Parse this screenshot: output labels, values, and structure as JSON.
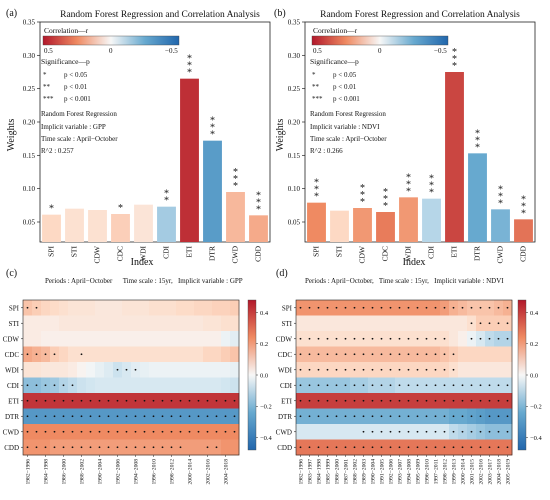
{
  "chart_data": [
    {
      "panel_label": "(a)",
      "type": "bar",
      "title": "Random Forest Regression and Correlation Analysis",
      "xlabel": "Index",
      "ylabel": "Weights",
      "ylim": [
        0.02,
        0.35
      ],
      "yticks": [
        "0.05",
        "0.10",
        "0.15",
        "0.20",
        "0.25",
        "0.30",
        "0.35"
      ],
      "categories": [
        "SPI",
        "STI",
        "CDW",
        "CDC",
        "WDI",
        "CDI",
        "ETI",
        "DTR",
        "CWD",
        "CDD"
      ],
      "values": [
        0.061,
        0.07,
        0.068,
        0.062,
        0.076,
        0.073,
        0.265,
        0.172,
        0.095,
        0.06
      ],
      "correlation_r": [
        0.08,
        0.06,
        0.06,
        0.1,
        0.05,
        -0.15,
        0.45,
        -0.3,
        0.15,
        0.18
      ],
      "significance": [
        "*",
        "",
        "",
        "*",
        "",
        "**",
        "***",
        "***",
        "***",
        "***"
      ],
      "colorbar": {
        "title": "Correlation—r",
        "ticks": [
          "0.5",
          "0",
          "−0.5"
        ]
      },
      "legend": {
        "title": "Significance—p",
        "rows": [
          [
            "*",
            "p < 0.05"
          ],
          [
            "**",
            "p < 0.01"
          ],
          [
            "***",
            "p < 0.001"
          ]
        ]
      },
      "note": [
        "Random Forest Regression",
        "Implicit variable : GPP",
        "Time scale : April−October",
        "R^2 : 0.257"
      ]
    },
    {
      "panel_label": "(b)",
      "type": "bar",
      "title": "Random Forest Regression and Correlation Analysis",
      "xlabel": "Index",
      "ylabel": "Weights",
      "ylim": [
        0.02,
        0.35
      ],
      "yticks": [
        "0.05",
        "0.10",
        "0.15",
        "0.20",
        "0.25",
        "0.30",
        "0.35"
      ],
      "categories": [
        "SPI",
        "STI",
        "CDW",
        "CDC",
        "WDI",
        "CDI",
        "ETI",
        "DTR",
        "CWD",
        "CDD"
      ],
      "values": [
        0.079,
        0.067,
        0.071,
        0.065,
        0.087,
        0.085,
        0.275,
        0.153,
        0.069,
        0.054
      ],
      "correlation_r": [
        0.25,
        0.08,
        0.22,
        0.28,
        0.22,
        -0.12,
        0.4,
        -0.25,
        -0.22,
        0.3
      ],
      "significance": [
        "***",
        "",
        "***",
        "***",
        "***",
        "***",
        "***",
        "***",
        "***",
        "***"
      ],
      "colorbar": {
        "title": "Correlation—r",
        "ticks": [
          "0.5",
          "0",
          "−0.5"
        ]
      },
      "legend": {
        "title": "Significance—p",
        "rows": [
          [
            "*",
            "p < 0.05"
          ],
          [
            "**",
            "p < 0.01"
          ],
          [
            "***",
            "p < 0.001"
          ]
        ]
      },
      "note": [
        "Random Forest Regression",
        "Implicit variable : NDVI",
        "Time scale : April−October",
        "R^2 : 0.266"
      ]
    },
    {
      "panel_label": "(c)",
      "type": "heatmap",
      "header": "Periods : April−October      Time scale : 15yr,   Implicit variable : GPP",
      "rows": [
        "SPI",
        "STI",
        "CDW",
        "CDC",
        "WDI",
        "CDI",
        "ETI",
        "DTR",
        "CWD",
        "CDD"
      ],
      "columns": [
        "1982−1996",
        "1983−1997",
        "1984−1998",
        "1985−1999",
        "1986−2000",
        "1987−2001",
        "1988−2002",
        "1989−2003",
        "1990−2004",
        "1991−2005",
        "1992−2006",
        "1993−2007",
        "1994−2008",
        "1995−2009",
        "1996−2010",
        "1997−2011",
        "1998−2012",
        "1999−2013",
        "2000−2014",
        "2001−2015",
        "2002−2016",
        "2003−2017",
        "2004−2018",
        "2005−2019"
      ],
      "xtick_labels": [
        "1982−1996",
        "1984−1998",
        "1986−2000",
        "1988−2002",
        "1990−2004",
        "1992−2006",
        "1994−2008",
        "1996−2010",
        "1998−2012",
        "2000−2014",
        "2002−2016",
        "2004−2018"
      ],
      "row_values": [
        [
          0.12,
          0.1,
          0.08,
          0.07,
          0.06,
          0.05,
          0.05,
          0.05,
          0.04,
          0.04,
          0.04,
          0.05,
          0.05,
          0.05,
          0.06,
          0.06,
          0.06,
          0.07,
          0.07,
          0.08,
          0.08,
          0.09,
          0.09,
          0.1
        ],
        [
          0.03,
          0.03,
          0.03,
          0.03,
          0.04,
          0.04,
          0.04,
          0.04,
          0.04,
          0.04,
          0.04,
          0.04,
          0.04,
          0.04,
          0.04,
          0.04,
          0.04,
          0.04,
          0.04,
          0.04,
          0.05,
          0.05,
          0.06,
          0.06
        ],
        [
          0.03,
          0.03,
          0.02,
          0.02,
          0.02,
          0.02,
          0.02,
          0.02,
          0.02,
          0.02,
          0.02,
          0.02,
          0.02,
          0.02,
          0.02,
          0.02,
          0.02,
          0.02,
          0.02,
          0.02,
          0.02,
          0.02,
          -0.02,
          -0.04
        ],
        [
          0.18,
          0.16,
          0.14,
          0.1,
          0.08,
          0.06,
          0.06,
          0.06,
          0.06,
          0.06,
          0.06,
          0.06,
          0.06,
          0.06,
          0.06,
          0.06,
          0.06,
          0.06,
          0.06,
          0.06,
          0.08,
          0.08,
          0.1,
          0.12
        ],
        [
          0.05,
          0.05,
          0.04,
          0.04,
          0.04,
          0.03,
          0.01,
          -0.01,
          -0.03,
          -0.05,
          -0.08,
          -0.06,
          -0.04,
          -0.03,
          -0.02,
          -0.02,
          -0.02,
          -0.02,
          -0.02,
          -0.02,
          -0.02,
          -0.02,
          -0.02,
          -0.03
        ],
        [
          -0.18,
          -0.18,
          -0.16,
          -0.15,
          -0.12,
          -0.1,
          -0.08,
          -0.07,
          -0.06,
          -0.06,
          -0.06,
          -0.06,
          -0.06,
          -0.06,
          -0.06,
          -0.06,
          -0.06,
          -0.06,
          -0.06,
          -0.06,
          -0.06,
          -0.06,
          -0.07,
          -0.08
        ],
        [
          0.42,
          0.42,
          0.42,
          0.42,
          0.42,
          0.42,
          0.42,
          0.42,
          0.42,
          0.42,
          0.42,
          0.42,
          0.42,
          0.42,
          0.42,
          0.42,
          0.42,
          0.42,
          0.42,
          0.42,
          0.42,
          0.42,
          0.42,
          0.42
        ],
        [
          -0.3,
          -0.3,
          -0.3,
          -0.3,
          -0.3,
          -0.3,
          -0.3,
          -0.3,
          -0.3,
          -0.3,
          -0.3,
          -0.3,
          -0.3,
          -0.3,
          -0.3,
          -0.3,
          -0.3,
          -0.3,
          -0.3,
          -0.3,
          -0.3,
          -0.3,
          -0.3,
          -0.3
        ],
        [
          0.24,
          0.24,
          0.24,
          0.24,
          0.24,
          0.24,
          0.24,
          0.24,
          0.24,
          0.24,
          0.24,
          0.24,
          0.24,
          0.24,
          0.24,
          0.24,
          0.24,
          0.24,
          0.24,
          0.24,
          0.24,
          0.24,
          0.24,
          0.24
        ],
        [
          0.22,
          0.22,
          0.22,
          0.2,
          0.2,
          0.2,
          0.2,
          0.2,
          0.2,
          0.2,
          0.2,
          0.2,
          0.2,
          0.2,
          0.2,
          0.2,
          0.2,
          0.2,
          0.2,
          0.2,
          0.2,
          0.2,
          0.22,
          0.22
        ]
      ],
      "significant_cells": [
        [
          0,
          1
        ],
        [],
        [],
        [
          0,
          1,
          2,
          3,
          6
        ],
        [
          10,
          11,
          12
        ],
        [
          0,
          1,
          2,
          3,
          4,
          5
        ],
        [
          0,
          1,
          2,
          3,
          4,
          5,
          6,
          7,
          8,
          9,
          10,
          11,
          12,
          13,
          14,
          15,
          16,
          17,
          18,
          19,
          20,
          21,
          22,
          23
        ],
        [
          0,
          1,
          2,
          3,
          4,
          5,
          6,
          7,
          8,
          9,
          10,
          11,
          12,
          13,
          14,
          15,
          16,
          17,
          18,
          19,
          20,
          21,
          22,
          23
        ],
        [
          0,
          1,
          2,
          3,
          4,
          5,
          6,
          7,
          8,
          9,
          10,
          11,
          12,
          13,
          14,
          15,
          16,
          17,
          18,
          19,
          20,
          21,
          22,
          23
        ],
        [
          0,
          1,
          2,
          3,
          4,
          5,
          6,
          7,
          8,
          9,
          10,
          11,
          12,
          13,
          14,
          15,
          16,
          17,
          20,
          21
        ]
      ],
      "colorbar_ticks": [
        "0.4",
        "0.2",
        "0.0",
        "−0.2",
        "−0.4"
      ],
      "clim": [
        -0.48,
        0.48
      ]
    },
    {
      "panel_label": "(d)",
      "type": "heatmap",
      "header": "Periods : April−October,   Time scale : 15yr,   Implicit variable : NDVI",
      "rows": [
        "SPI",
        "STI",
        "CDW",
        "CDC",
        "WDI",
        "CDI",
        "ETI",
        "DTR",
        "CWD",
        "CDD"
      ],
      "columns": [
        "1982−1996",
        "1983−1997",
        "1984−1998",
        "1985−1999",
        "1986−2000",
        "1987−2001",
        "1988−2002",
        "1989−2003",
        "1990−2004",
        "1991−2005",
        "1992−2006",
        "1993−2007",
        "1994−2008",
        "1995−2009",
        "1996−2010",
        "1997−2011",
        "1998−2012",
        "1999−2013",
        "2000−2014",
        "2001−2015",
        "2002−2016",
        "2003−2017",
        "2004−2018",
        "2005−2019"
      ],
      "xtick_labels": [
        "1982−1996",
        "1983−1997",
        "1984−1998",
        "1985−1999",
        "1986−2000",
        "1987−2001",
        "1988−2002",
        "1989−2003",
        "1990−2004",
        "1991−2005",
        "1992−2006",
        "1993−2007",
        "1994−2008",
        "1995−2009",
        "1996−2010",
        "1997−2011",
        "1998−2012",
        "1999−2013",
        "2000−2014",
        "2001−2015",
        "2002−2016",
        "2003−2017",
        "2004−2018",
        "2005−2019"
      ],
      "row_values": [
        [
          0.22,
          0.22,
          0.22,
          0.22,
          0.22,
          0.22,
          0.22,
          0.22,
          0.22,
          0.22,
          0.22,
          0.22,
          0.22,
          0.22,
          0.22,
          0.22,
          0.2,
          0.16,
          0.14,
          0.12,
          0.12,
          0.12,
          0.14,
          0.16
        ],
        [
          0.04,
          0.04,
          0.04,
          0.04,
          0.04,
          0.04,
          0.04,
          0.04,
          0.04,
          0.04,
          0.04,
          0.04,
          0.04,
          0.04,
          0.04,
          0.04,
          0.04,
          0.04,
          0.04,
          0.06,
          0.1,
          0.1,
          0.1,
          0.1
        ],
        [
          0.06,
          0.06,
          0.06,
          0.06,
          0.06,
          0.06,
          0.06,
          0.06,
          0.06,
          0.06,
          0.06,
          0.06,
          0.06,
          0.06,
          0.06,
          0.06,
          0.06,
          0.04,
          0.02,
          -0.02,
          -0.06,
          -0.1,
          -0.12,
          -0.12
        ],
        [
          0.14,
          0.14,
          0.14,
          0.14,
          0.14,
          0.14,
          0.14,
          0.14,
          0.14,
          0.14,
          0.14,
          0.14,
          0.14,
          0.14,
          0.14,
          0.14,
          0.12,
          0.1,
          0.08,
          0.08,
          0.08,
          0.08,
          0.08,
          0.08
        ],
        [
          0.08,
          0.08,
          0.08,
          0.08,
          0.08,
          0.08,
          0.08,
          0.08,
          0.08,
          0.08,
          0.08,
          0.08,
          0.08,
          0.08,
          0.08,
          0.08,
          0.08,
          0.06,
          0.04,
          0.04,
          0.04,
          0.04,
          0.04,
          0.04
        ],
        [
          -0.16,
          -0.16,
          -0.16,
          -0.16,
          -0.16,
          -0.16,
          -0.14,
          -0.14,
          -0.12,
          -0.12,
          -0.12,
          -0.1,
          -0.1,
          -0.1,
          -0.1,
          -0.1,
          -0.1,
          -0.1,
          -0.1,
          -0.1,
          -0.1,
          -0.1,
          -0.1,
          -0.1
        ],
        [
          0.4,
          0.4,
          0.4,
          0.4,
          0.4,
          0.4,
          0.4,
          0.4,
          0.4,
          0.4,
          0.4,
          0.4,
          0.4,
          0.4,
          0.4,
          0.4,
          0.4,
          0.4,
          0.4,
          0.4,
          0.4,
          0.4,
          0.4,
          0.4
        ],
        [
          -0.22,
          -0.22,
          -0.22,
          -0.22,
          -0.22,
          -0.22,
          -0.22,
          -0.22,
          -0.22,
          -0.22,
          -0.22,
          -0.22,
          -0.22,
          -0.22,
          -0.22,
          -0.22,
          -0.22,
          -0.24,
          -0.24,
          -0.26,
          -0.28,
          -0.3,
          -0.3,
          -0.3
        ],
        [
          -0.06,
          -0.06,
          -0.06,
          -0.06,
          -0.06,
          -0.06,
          -0.06,
          -0.06,
          -0.06,
          -0.06,
          -0.06,
          -0.06,
          -0.06,
          -0.06,
          -0.06,
          -0.06,
          -0.06,
          -0.1,
          -0.12,
          -0.14,
          -0.16,
          -0.18,
          -0.18,
          -0.18
        ],
        [
          0.28,
          0.28,
          0.28,
          0.28,
          0.28,
          0.28,
          0.28,
          0.28,
          0.28,
          0.28,
          0.28,
          0.28,
          0.28,
          0.28,
          0.28,
          0.28,
          0.28,
          0.28,
          0.28,
          0.28,
          0.28,
          0.28,
          0.28,
          0.28
        ]
      ],
      "significant_cells": [
        [
          0,
          1,
          2,
          3,
          4,
          5,
          6,
          7,
          8,
          9,
          10,
          11,
          12,
          13,
          14,
          15,
          16,
          17,
          18,
          19,
          20,
          21,
          22,
          23
        ],
        [
          19,
          20,
          21,
          22,
          23
        ],
        [
          0,
          1,
          2,
          3,
          4,
          5,
          6,
          7,
          8,
          9,
          10,
          11,
          12,
          13,
          14,
          15,
          16,
          19,
          20,
          21,
          22,
          23
        ],
        [
          0,
          1,
          2,
          3,
          4,
          5,
          6,
          7,
          8,
          9,
          10,
          11,
          12,
          13,
          14,
          15,
          16,
          17
        ],
        [
          0,
          1,
          2,
          3,
          4,
          5,
          6,
          7,
          8,
          9,
          10,
          11,
          12,
          13,
          14,
          15,
          16,
          17
        ],
        [
          0,
          1,
          2,
          3,
          4,
          5,
          6,
          7,
          8,
          9,
          10,
          11,
          12,
          13,
          14,
          15,
          16,
          17,
          18,
          19,
          20,
          21,
          22,
          23
        ],
        [
          0,
          1,
          2,
          3,
          4,
          5,
          6,
          7,
          8,
          9,
          10,
          11,
          12,
          13,
          14,
          15,
          16,
          17,
          18,
          19,
          20,
          21,
          22,
          23
        ],
        [
          0,
          1,
          2,
          3,
          4,
          5,
          6,
          7,
          8,
          9,
          10,
          11,
          12,
          13,
          14,
          15,
          16,
          17,
          18,
          19,
          20,
          21,
          22,
          23
        ],
        [
          7,
          8,
          9,
          10,
          11,
          12,
          13,
          14,
          15,
          16,
          17,
          18,
          19,
          20,
          21,
          22,
          23
        ],
        [
          0,
          1,
          2,
          3,
          4,
          5,
          6,
          7,
          8,
          9,
          10,
          11,
          12,
          13,
          14,
          15,
          16,
          17,
          18,
          19,
          20,
          21,
          22,
          23
        ]
      ],
      "colorbar_ticks": [
        "0.4",
        "0.2",
        "0.0",
        "−0.2",
        "−0.4"
      ],
      "clim": [
        -0.48,
        0.48
      ]
    }
  ]
}
